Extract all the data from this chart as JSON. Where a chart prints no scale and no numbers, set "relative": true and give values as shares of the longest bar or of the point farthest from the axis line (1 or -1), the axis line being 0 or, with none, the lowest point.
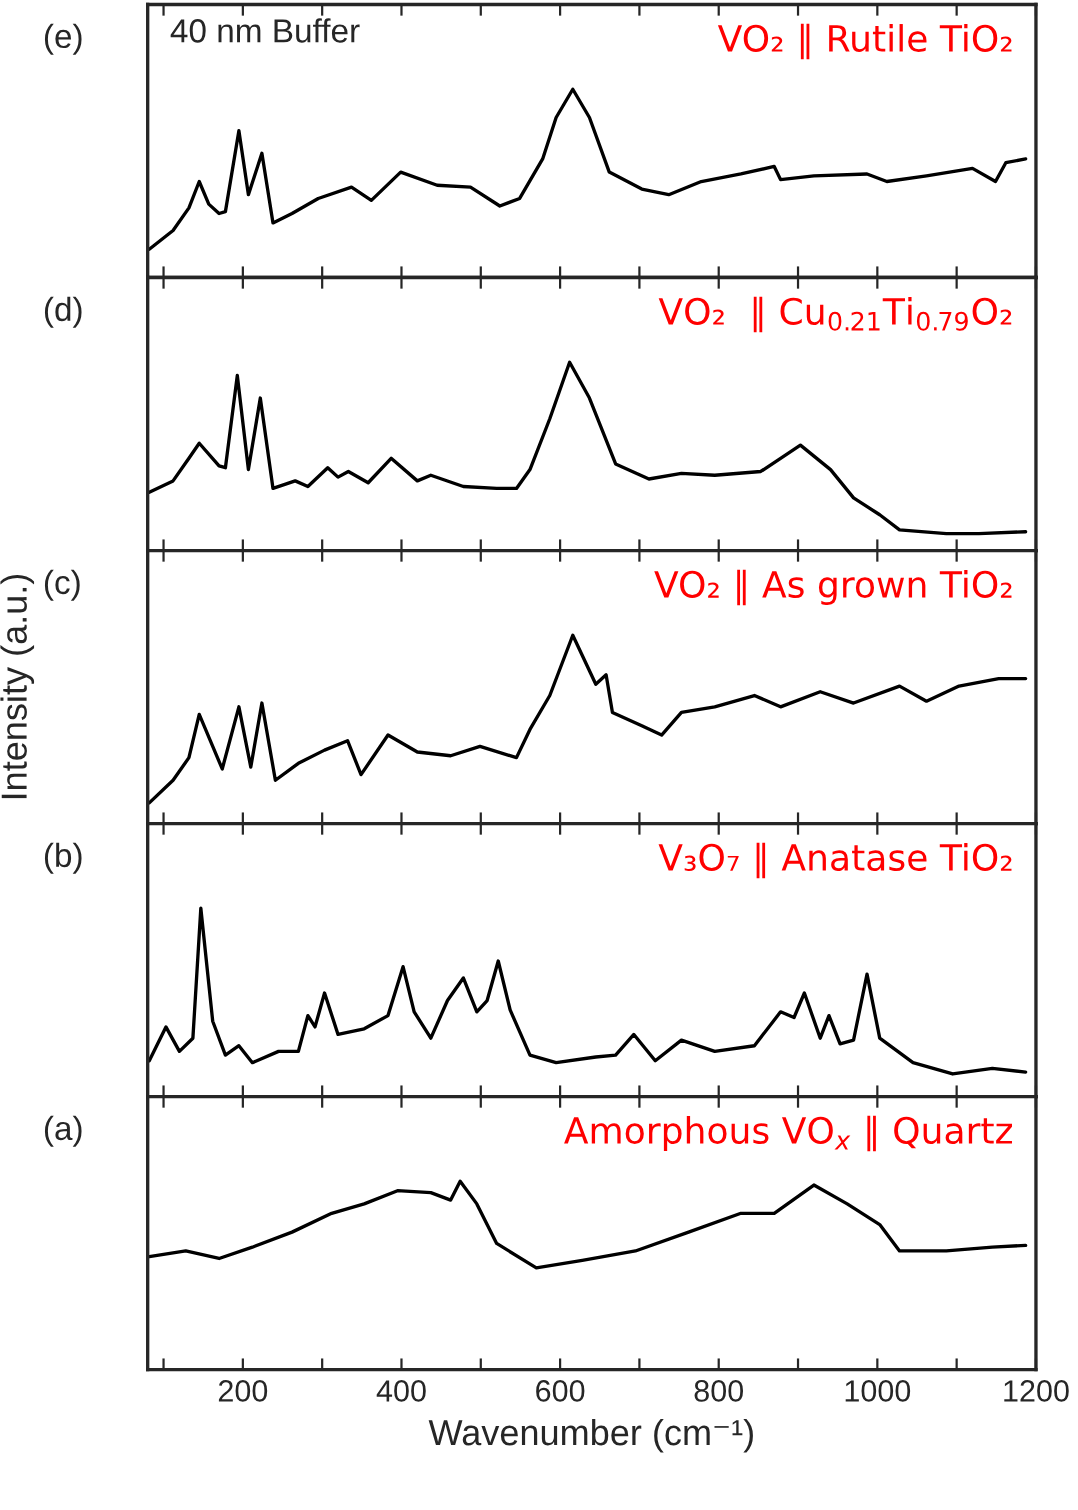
{
  "chart_data": [
    {
      "type": "line",
      "relative": true,
      "xlim": [
        80,
        1200
      ],
      "xticks": [
        {
          "value": 100,
          "label": null
        },
        {
          "value": 200,
          "label": null
        },
        {
          "value": 300,
          "label": null
        },
        {
          "value": 400,
          "label": null
        },
        {
          "value": 500,
          "label": null
        },
        {
          "value": 600,
          "label": null
        },
        {
          "value": 700,
          "label": null
        },
        {
          "value": 800,
          "label": null
        },
        {
          "value": 900,
          "label": null
        },
        {
          "value": 1000,
          "label": null
        },
        {
          "value": 1100,
          "label": null
        },
        {
          "value": 1200,
          "label": null
        }
      ],
      "tick_labels": false,
      "annotations": [
        "(e)",
        "40 nm Buffer",
        "VO₂ ∥ Rutile TiO₂"
      ],
      "x": [
        82,
        112,
        132,
        145,
        157,
        170,
        178,
        195,
        207,
        224,
        238,
        262,
        295,
        337,
        362,
        399,
        445,
        487,
        524,
        549,
        578,
        595,
        616,
        637,
        662,
        703,
        737,
        778,
        828,
        870,
        878,
        920,
        987,
        1012,
        1062,
        1120,
        1149,
        1162,
        1187
      ],
      "series": [
        {
          "color": "#000000",
          "values": [
            0.15,
            0.25,
            0.37,
            0.51,
            0.39,
            0.34,
            0.35,
            0.78,
            0.44,
            0.66,
            0.29,
            0.34,
            0.42,
            0.48,
            0.41,
            0.56,
            0.49,
            0.48,
            0.38,
            0.42,
            0.63,
            0.85,
            1.0,
            0.85,
            0.56,
            0.47,
            0.44,
            0.51,
            0.55,
            0.59,
            0.52,
            0.54,
            0.55,
            0.51,
            0.54,
            0.58,
            0.51,
            0.61,
            0.63
          ]
        }
      ]
    },
    {
      "type": "line",
      "relative": true,
      "xlim": [
        80,
        1200
      ],
      "xticks": [
        {
          "value": 100,
          "label": null
        },
        {
          "value": 200,
          "label": null
        },
        {
          "value": 300,
          "label": null
        },
        {
          "value": 400,
          "label": null
        },
        {
          "value": 500,
          "label": null
        },
        {
          "value": 600,
          "label": null
        },
        {
          "value": 700,
          "label": null
        },
        {
          "value": 800,
          "label": null
        },
        {
          "value": 900,
          "label": null
        },
        {
          "value": 1000,
          "label": null
        },
        {
          "value": 1100,
          "label": null
        },
        {
          "value": 1200,
          "label": null
        }
      ],
      "tick_labels": false,
      "annotations": [
        "(d)",
        "VO₂  ∥ Cu$_{0.21}$Ti$_{0.79}$O₂"
      ],
      "x": [
        82,
        112,
        132,
        145,
        170,
        178,
        193,
        207,
        222,
        238,
        266,
        282,
        307,
        320,
        333,
        358,
        387,
        420,
        437,
        478,
        520,
        545,
        562,
        587,
        612,
        637,
        670,
        712,
        753,
        795,
        853,
        878,
        903,
        941,
        970,
        1003,
        1028,
        1087,
        1128,
        1187
      ],
      "series": [
        {
          "color": "#000000",
          "values": [
            0.31,
            0.37,
            0.49,
            0.57,
            0.45,
            0.44,
            0.93,
            0.43,
            0.81,
            0.33,
            0.37,
            0.34,
            0.44,
            0.39,
            0.42,
            0.36,
            0.49,
            0.37,
            0.4,
            0.34,
            0.33,
            0.33,
            0.43,
            0.7,
            1.0,
            0.81,
            0.46,
            0.38,
            0.41,
            0.4,
            0.42,
            0.49,
            0.56,
            0.43,
            0.28,
            0.19,
            0.11,
            0.09,
            0.09,
            0.1
          ]
        }
      ]
    },
    {
      "type": "line",
      "relative": true,
      "xlim": [
        80,
        1200
      ],
      "xticks": [
        {
          "value": 100,
          "label": null
        },
        {
          "value": 200,
          "label": null
        },
        {
          "value": 300,
          "label": null
        },
        {
          "value": 400,
          "label": null
        },
        {
          "value": 500,
          "label": null
        },
        {
          "value": 600,
          "label": null
        },
        {
          "value": 700,
          "label": null
        },
        {
          "value": 800,
          "label": null
        },
        {
          "value": 900,
          "label": null
        },
        {
          "value": 1000,
          "label": null
        },
        {
          "value": 1100,
          "label": null
        },
        {
          "value": 1200,
          "label": null
        }
      ],
      "tick_labels": false,
      "ylabel": "Intensity (a.u.)",
      "annotations": [
        "(c)",
        "VO₂ ∥ As grown TiO₂"
      ],
      "x": [
        82,
        112,
        132,
        145,
        174,
        195,
        210,
        224,
        241,
        270,
        303,
        332,
        349,
        383,
        420,
        462,
        499,
        545,
        562,
        587,
        616,
        645,
        658,
        666,
        703,
        728,
        753,
        795,
        845,
        878,
        928,
        970,
        1028,
        1062,
        1103,
        1153,
        1187
      ],
      "series": [
        {
          "color": "#000000",
          "values": [
            0.11,
            0.23,
            0.35,
            0.58,
            0.29,
            0.62,
            0.3,
            0.64,
            0.23,
            0.32,
            0.39,
            0.44,
            0.26,
            0.47,
            0.38,
            0.36,
            0.41,
            0.35,
            0.5,
            0.68,
            1.0,
            0.74,
            0.79,
            0.59,
            0.52,
            0.47,
            0.59,
            0.62,
            0.68,
            0.62,
            0.7,
            0.64,
            0.73,
            0.65,
            0.73,
            0.77,
            0.77
          ]
        }
      ]
    },
    {
      "type": "line",
      "relative": true,
      "xlim": [
        80,
        1200
      ],
      "xticks": [
        {
          "value": 100,
          "label": null
        },
        {
          "value": 200,
          "label": null
        },
        {
          "value": 300,
          "label": null
        },
        {
          "value": 400,
          "label": null
        },
        {
          "value": 500,
          "label": null
        },
        {
          "value": 600,
          "label": null
        },
        {
          "value": 700,
          "label": null
        },
        {
          "value": 800,
          "label": null
        },
        {
          "value": 900,
          "label": null
        },
        {
          "value": 1000,
          "label": null
        },
        {
          "value": 1100,
          "label": null
        },
        {
          "value": 1200,
          "label": null
        }
      ],
      "tick_labels": false,
      "annotations": [
        "(b)",
        "V₃O₇ ∥ Anatase TiO₂"
      ],
      "x": [
        82,
        103,
        120,
        137,
        147,
        162,
        178,
        195,
        212,
        245,
        270,
        282,
        291,
        303,
        320,
        353,
        383,
        402,
        416,
        437,
        458,
        478,
        495,
        508,
        522,
        537,
        562,
        595,
        645,
        670,
        693,
        720,
        753,
        795,
        845,
        878,
        895,
        908,
        928,
        939,
        953,
        970,
        987,
        1003,
        1045,
        1095,
        1145,
        1187
      ],
      "series": [
        {
          "color": "#000000",
          "values": [
            0.19,
            0.37,
            0.24,
            0.31,
            1.0,
            0.4,
            0.22,
            0.27,
            0.18,
            0.24,
            0.24,
            0.43,
            0.37,
            0.55,
            0.33,
            0.36,
            0.43,
            0.69,
            0.45,
            0.31,
            0.51,
            0.63,
            0.45,
            0.51,
            0.72,
            0.46,
            0.22,
            0.18,
            0.21,
            0.22,
            0.33,
            0.19,
            0.3,
            0.24,
            0.27,
            0.45,
            0.42,
            0.55,
            0.31,
            0.43,
            0.28,
            0.3,
            0.65,
            0.31,
            0.18,
            0.12,
            0.15,
            0.13
          ]
        }
      ]
    },
    {
      "type": "line",
      "relative": true,
      "xlim": [
        80,
        1200
      ],
      "xticks": [
        {
          "value": 100,
          "label": null
        },
        200,
        {
          "value": 300,
          "label": null
        },
        400,
        {
          "value": 500,
          "label": null
        },
        600,
        {
          "value": 700,
          "label": null
        },
        800,
        {
          "value": 900,
          "label": null
        },
        1000,
        {
          "value": 1100,
          "label": null
        },
        1200
      ],
      "tick_labels": "x",
      "xlabel": "Wavenumber (cm⁻¹)",
      "annotations": [
        "(a)",
        "Amorphous VO$_{x}$ ∥ Quartz"
      ],
      "x": [
        82,
        128,
        170,
        212,
        262,
        312,
        353,
        395,
        437,
        462,
        474,
        495,
        520,
        570,
        628,
        695,
        762,
        828,
        870,
        920,
        962,
        1003,
        1028,
        1087,
        1145,
        1187
      ],
      "series": [
        {
          "color": "#000000",
          "values": [
            0.6,
            0.63,
            0.59,
            0.65,
            0.73,
            0.83,
            0.88,
            0.95,
            0.94,
            0.9,
            1.0,
            0.88,
            0.67,
            0.54,
            0.58,
            0.63,
            0.73,
            0.83,
            0.83,
            0.98,
            0.88,
            0.77,
            0.63,
            0.63,
            0.65,
            0.66
          ]
        }
      ]
    }
  ]
}
